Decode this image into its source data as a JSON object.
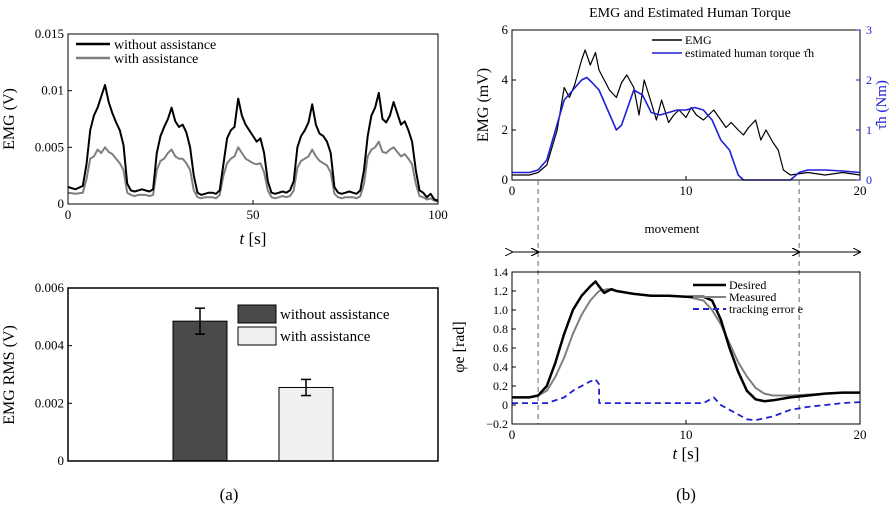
{
  "captions": {
    "a": "(a)",
    "b": "(b)"
  },
  "colors": {
    "black": "#000000",
    "gray": "#7f7f7f",
    "blue": "#1f1fd6",
    "dark_bar": "#4a4a4a",
    "light_bar": "#f0f0f0"
  },
  "chart_data": [
    {
      "id": "emg-time",
      "type": "line",
      "title": "",
      "xlabel": "t [s]",
      "ylabel": "EMG (V)",
      "xlim": [
        0,
        100
      ],
      "ylim": [
        0,
        0.015
      ],
      "xticks": [
        0,
        50,
        100
      ],
      "yticks": [
        0,
        0.005,
        0.01,
        0.015
      ],
      "ytick_labels": [
        "0",
        "0.005",
        "0.01",
        "0.015"
      ],
      "legend": {
        "placement": "top-left",
        "entries": [
          "without assistance",
          "with assistance"
        ]
      },
      "series": [
        {
          "name": "without assistance",
          "color": "#000000",
          "x": [
            0,
            2,
            4,
            5,
            6,
            7,
            8,
            9,
            10,
            11,
            12,
            13,
            14,
            15,
            16,
            17,
            18,
            19,
            20,
            21,
            22,
            23,
            24,
            25,
            26,
            27,
            28,
            29,
            30,
            31,
            32,
            33,
            34,
            35,
            36,
            37,
            38,
            39,
            40,
            41,
            42,
            43,
            44,
            45,
            46,
            47,
            48,
            49,
            50,
            51,
            52,
            53,
            54,
            55,
            56,
            57,
            58,
            59,
            60,
            61,
            62,
            63,
            64,
            65,
            66,
            67,
            68,
            69,
            70,
            71,
            72,
            73,
            74,
            75,
            76,
            77,
            78,
            79,
            80,
            81,
            82,
            83,
            84,
            85,
            86,
            87,
            88,
            89,
            90,
            91,
            92,
            93,
            94,
            95,
            96,
            97,
            98,
            99,
            100
          ],
          "y": [
            0.0015,
            0.0013,
            0.0016,
            0.0035,
            0.0065,
            0.0078,
            0.0085,
            0.0095,
            0.0105,
            0.009,
            0.008,
            0.0072,
            0.0065,
            0.0052,
            0.0018,
            0.0012,
            0.0011,
            0.0012,
            0.0013,
            0.0012,
            0.0011,
            0.0013,
            0.0045,
            0.006,
            0.0068,
            0.0075,
            0.0085,
            0.0073,
            0.0068,
            0.007,
            0.0063,
            0.005,
            0.0025,
            0.001,
            0.0008,
            0.0009,
            0.001,
            0.001,
            0.0009,
            0.0012,
            0.0035,
            0.0058,
            0.0065,
            0.0068,
            0.0093,
            0.0078,
            0.007,
            0.0065,
            0.006,
            0.0055,
            0.0058,
            0.0045,
            0.002,
            0.001,
            0.0009,
            0.001,
            0.0011,
            0.001,
            0.0012,
            0.002,
            0.005,
            0.006,
            0.0065,
            0.0072,
            0.0088,
            0.007,
            0.0062,
            0.006,
            0.0055,
            0.0045,
            0.0015,
            0.001,
            0.0009,
            0.001,
            0.0011,
            0.001,
            0.0009,
            0.0012,
            0.003,
            0.006,
            0.0078,
            0.0085,
            0.0098,
            0.0075,
            0.0072,
            0.0078,
            0.009,
            0.008,
            0.007,
            0.0073,
            0.0065,
            0.0055,
            0.003,
            0.0012,
            0.001,
            0.0006,
            0.0009,
            0.0004,
            0.0003
          ]
        },
        {
          "name": "with assistance",
          "color": "#7f7f7f",
          "x": [
            0,
            2,
            4,
            5,
            6,
            7,
            8,
            9,
            10,
            11,
            12,
            13,
            14,
            15,
            16,
            17,
            18,
            19,
            20,
            21,
            22,
            23,
            24,
            25,
            26,
            27,
            28,
            29,
            30,
            31,
            32,
            33,
            34,
            35,
            36,
            37,
            38,
            39,
            40,
            41,
            42,
            43,
            44,
            45,
            46,
            47,
            48,
            49,
            50,
            51,
            52,
            53,
            54,
            55,
            56,
            57,
            58,
            59,
            60,
            61,
            62,
            63,
            64,
            65,
            66,
            67,
            68,
            69,
            70,
            71,
            72,
            73,
            74,
            75,
            76,
            77,
            78,
            79,
            80,
            81,
            82,
            83,
            84,
            85,
            86,
            87,
            88,
            89,
            90,
            91,
            92,
            93,
            94,
            95,
            96,
            97,
            98,
            99,
            100
          ],
          "y": [
            0.001,
            0.0009,
            0.001,
            0.0022,
            0.004,
            0.0042,
            0.0048,
            0.0045,
            0.005,
            0.0046,
            0.0044,
            0.004,
            0.0036,
            0.003,
            0.001,
            0.0008,
            0.0007,
            0.0008,
            0.0008,
            0.0008,
            0.0007,
            0.0008,
            0.003,
            0.0038,
            0.004,
            0.0045,
            0.0048,
            0.0042,
            0.004,
            0.004,
            0.0036,
            0.003,
            0.0012,
            0.0006,
            0.0005,
            0.0006,
            0.0006,
            0.0006,
            0.0005,
            0.0008,
            0.0025,
            0.0036,
            0.004,
            0.0042,
            0.005,
            0.0045,
            0.004,
            0.0038,
            0.0036,
            0.0035,
            0.0036,
            0.0028,
            0.0012,
            0.0006,
            0.0005,
            0.0006,
            0.0007,
            0.0006,
            0.0007,
            0.0012,
            0.0032,
            0.0038,
            0.004,
            0.0042,
            0.0048,
            0.0042,
            0.0038,
            0.0036,
            0.0034,
            0.0028,
            0.0009,
            0.0006,
            0.0005,
            0.0006,
            0.0006,
            0.0006,
            0.0005,
            0.0007,
            0.0018,
            0.0042,
            0.0048,
            0.005,
            0.0055,
            0.0046,
            0.0045,
            0.0048,
            0.005,
            0.0046,
            0.0042,
            0.0044,
            0.004,
            0.0035,
            0.0018,
            0.0007,
            0.0006,
            0.0004,
            0.0005,
            0.0003,
            0.0002
          ]
        }
      ]
    },
    {
      "id": "emg-rms",
      "type": "bar",
      "title": "",
      "ylabel": "EMG RMS (V)",
      "ylim": [
        0,
        0.006
      ],
      "yticks": [
        0,
        0.002,
        0.004,
        0.006
      ],
      "ytick_labels": [
        "0",
        "0.002",
        "0.004",
        "0.006"
      ],
      "legend": {
        "placement": "top-right",
        "entries": [
          "without assistance",
          "with assistance"
        ]
      },
      "categories": [
        "without assistance",
        "with assistance"
      ],
      "values": [
        0.00485,
        0.00255
      ],
      "errors": [
        0.00045,
        0.00028
      ],
      "bar_colors": [
        "#4a4a4a",
        "#f0f0f0"
      ]
    },
    {
      "id": "emg-torque",
      "type": "line",
      "title": "EMG and Estimated Human Torque",
      "xlabel": "",
      "ylabel": "EMG (mV)",
      "ylabel_right": "τ̂h (Nm)",
      "xlim": [
        0,
        20
      ],
      "ylim": [
        0,
        6
      ],
      "ylim_right": [
        0,
        3
      ],
      "xticks": [
        0,
        10,
        20
      ],
      "yticks": [
        0,
        2,
        4,
        6
      ],
      "yticks_right": [
        0,
        1,
        2,
        3
      ],
      "legend": {
        "placement": "top-right",
        "entries": [
          "EMG",
          "estimated human torque τ̂h"
        ]
      },
      "series": [
        {
          "name": "EMG",
          "color": "#000000",
          "axis": "left",
          "x": [
            0,
            1,
            1.5,
            2,
            2.3,
            2.6,
            3,
            3.3,
            3.6,
            4,
            4.2,
            4.5,
            4.8,
            5,
            5.3,
            5.6,
            6,
            6.3,
            6.6,
            7,
            7.3,
            7.6,
            8,
            8.3,
            8.6,
            9,
            9.3,
            9.6,
            10,
            10.3,
            10.6,
            11,
            11.3,
            11.6,
            12,
            12.3,
            12.6,
            13,
            13.3,
            13.6,
            14,
            14.3,
            14.6,
            15,
            15.3,
            15.6,
            16,
            17,
            18,
            19,
            20
          ],
          "y": [
            0.2,
            0.2,
            0.3,
            0.6,
            1.3,
            2.0,
            3.7,
            3.3,
            3.8,
            4.8,
            5.2,
            4.6,
            5.1,
            4.4,
            4.0,
            3.6,
            3.3,
            3.9,
            4.2,
            3.7,
            2.6,
            4.0,
            3.1,
            2.4,
            3.2,
            2.3,
            2.6,
            2.8,
            2.5,
            2.9,
            2.6,
            2.4,
            2.6,
            2.8,
            2.4,
            2.1,
            2.3,
            2.0,
            1.8,
            2.1,
            2.4,
            1.6,
            2.0,
            1.5,
            1.2,
            0.4,
            0.2,
            0.3,
            0.2,
            0.3,
            0.2
          ]
        },
        {
          "name": "estimated human torque τ̂h",
          "color": "#1f1fd6",
          "axis": "right",
          "x": [
            0,
            1,
            1.5,
            2,
            2.5,
            3,
            3.5,
            4,
            4.3,
            4.6,
            5,
            5.5,
            6,
            6.3,
            6.6,
            7,
            7.5,
            8,
            8.5,
            9,
            9.5,
            10,
            10.5,
            11,
            11.5,
            12,
            12.5,
            13,
            13.3,
            13.6,
            14,
            15,
            16,
            16.5,
            17,
            18,
            19,
            20
          ],
          "y": [
            0.15,
            0.15,
            0.2,
            0.4,
            1.0,
            1.6,
            1.8,
            2.0,
            2.05,
            1.95,
            1.8,
            1.4,
            1.0,
            1.1,
            1.4,
            1.8,
            1.7,
            1.35,
            1.3,
            1.35,
            1.4,
            1.4,
            1.45,
            1.4,
            1.2,
            0.8,
            0.6,
            0.1,
            0.0,
            0.0,
            0.0,
            0.0,
            0.0,
            0.15,
            0.2,
            0.2,
            0.18,
            0.15
          ]
        }
      ]
    },
    {
      "id": "phase-angle",
      "type": "line",
      "title": "",
      "xlabel": "t [s]",
      "ylabel": "φe [rad]",
      "xlim": [
        0,
        20
      ],
      "ylim": [
        -0.2,
        1.4
      ],
      "xticks": [
        0,
        10,
        20
      ],
      "yticks": [
        -0.2,
        0,
        0.2,
        0.4,
        0.6,
        0.8,
        1.0,
        1.2,
        1.4
      ],
      "ytick_labels": [
        "−0.2",
        "0",
        "0.2",
        "0.4",
        "0.6",
        "0.8",
        "1.0",
        "1.2",
        "1.4"
      ],
      "legend": {
        "placement": "top-right",
        "entries": [
          "Desired",
          "Measured",
          "tracking error e"
        ]
      },
      "annotations": {
        "movement_label": "movement",
        "movement_start": 1.5,
        "movement_end": 16.5
      },
      "series": [
        {
          "name": "Desired",
          "color": "#000000",
          "x": [
            0,
            1,
            1.5,
            2,
            2.5,
            3,
            3.5,
            4,
            4.5,
            4.8,
            5,
            5.3,
            5.7,
            6,
            7,
            8,
            9,
            10,
            11,
            11.5,
            12,
            12.5,
            13,
            13.5,
            14,
            14.5,
            15,
            16,
            17,
            18,
            19,
            20
          ],
          "y": [
            0.08,
            0.08,
            0.1,
            0.2,
            0.45,
            0.75,
            1.0,
            1.15,
            1.25,
            1.3,
            1.25,
            1.18,
            1.22,
            1.2,
            1.17,
            1.15,
            1.15,
            1.14,
            1.14,
            1.1,
            0.9,
            0.6,
            0.35,
            0.15,
            0.06,
            0.04,
            0.05,
            0.08,
            0.1,
            0.12,
            0.13,
            0.13
          ]
        },
        {
          "name": "Measured",
          "color": "#7f7f7f",
          "x": [
            0,
            1,
            1.5,
            2,
            2.5,
            3,
            3.5,
            4,
            4.5,
            5,
            5.5,
            6,
            7,
            8,
            9,
            10,
            11,
            11.5,
            12,
            12.5,
            13,
            13.5,
            14,
            14.5,
            15,
            16,
            17,
            18,
            19,
            20
          ],
          "y": [
            0.08,
            0.08,
            0.1,
            0.15,
            0.3,
            0.5,
            0.75,
            0.95,
            1.1,
            1.2,
            1.22,
            1.2,
            1.17,
            1.15,
            1.15,
            1.14,
            1.1,
            1.0,
            0.85,
            0.65,
            0.45,
            0.3,
            0.18,
            0.12,
            0.1,
            0.1,
            0.11,
            0.12,
            0.13,
            0.13
          ]
        },
        {
          "name": "tracking error e",
          "color": "#1f1fd6",
          "x": [
            0,
            1,
            2,
            3,
            3.5,
            4,
            4.5,
            4.8,
            5,
            5.01,
            6,
            7,
            8,
            9,
            10,
            11,
            11.3,
            11.6,
            12,
            12.5,
            13,
            13.5,
            14,
            15,
            16,
            17,
            18,
            19,
            20
          ],
          "y": [
            0.02,
            0.02,
            0.02,
            0.08,
            0.15,
            0.2,
            0.25,
            0.27,
            0.22,
            0.02,
            0.02,
            0.02,
            0.02,
            0.02,
            0.02,
            0.02,
            0.05,
            0.08,
            0.0,
            -0.05,
            -0.1,
            -0.15,
            -0.16,
            -0.12,
            -0.05,
            -0.02,
            0.0,
            0.02,
            0.03
          ]
        }
      ]
    }
  ]
}
